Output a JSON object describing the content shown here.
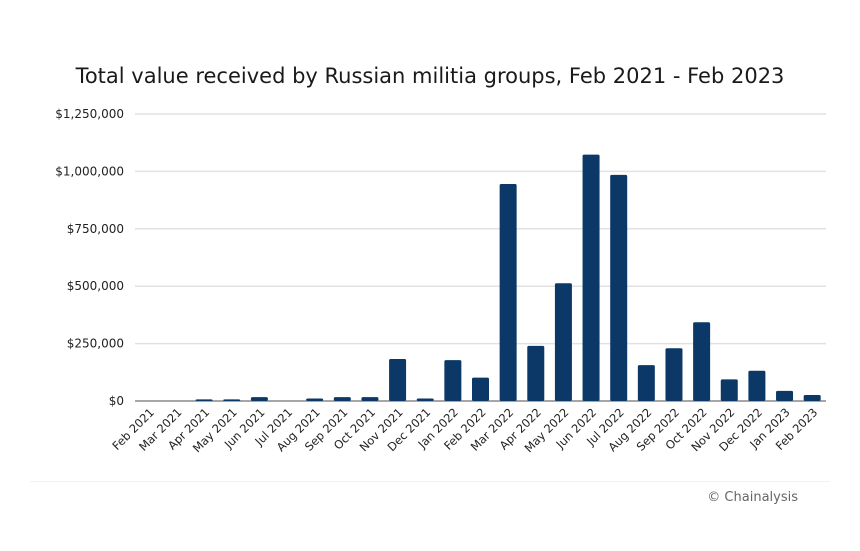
{
  "chart_data": {
    "type": "bar",
    "title": "Total value received by Russian militia groups, Feb 2021 - Feb 2023",
    "xlabel": "",
    "ylabel": "",
    "ylim": [
      0,
      1250000
    ],
    "yticks": [
      0,
      250000,
      500000,
      750000,
      1000000,
      1250000
    ],
    "ytick_labels": [
      "$0",
      "$250,000",
      "$500,000",
      "$750,000",
      "$1,000,000",
      "$1,250,000"
    ],
    "grid": true,
    "color": "#0b3866",
    "categories": [
      "Feb 2021",
      "Mar 2021",
      "Apr 2021",
      "May 2021",
      "Jun 2021",
      "Jul 2021",
      "Aug 2021",
      "Sep 2021",
      "Oct 2021",
      "Nov 2021",
      "Dec 2021",
      "Jan 2022",
      "Feb 2022",
      "Mar 2022",
      "Apr 2022",
      "May 2022",
      "Jun 2022",
      "Jul 2022",
      "Aug 2022",
      "Sep 2022",
      "Oct 2022",
      "Nov 2022",
      "Dec 2022",
      "Jan 2023",
      "Feb 2023"
    ],
    "values": [
      0,
      0,
      7000,
      7000,
      17000,
      0,
      11000,
      17000,
      17000,
      183000,
      11000,
      178000,
      102000,
      945000,
      240000,
      513000,
      1073000,
      985000,
      156000,
      230000,
      343000,
      94000,
      132000,
      44000,
      26000
    ]
  },
  "footer": {
    "credit": "© Chainalysis"
  }
}
